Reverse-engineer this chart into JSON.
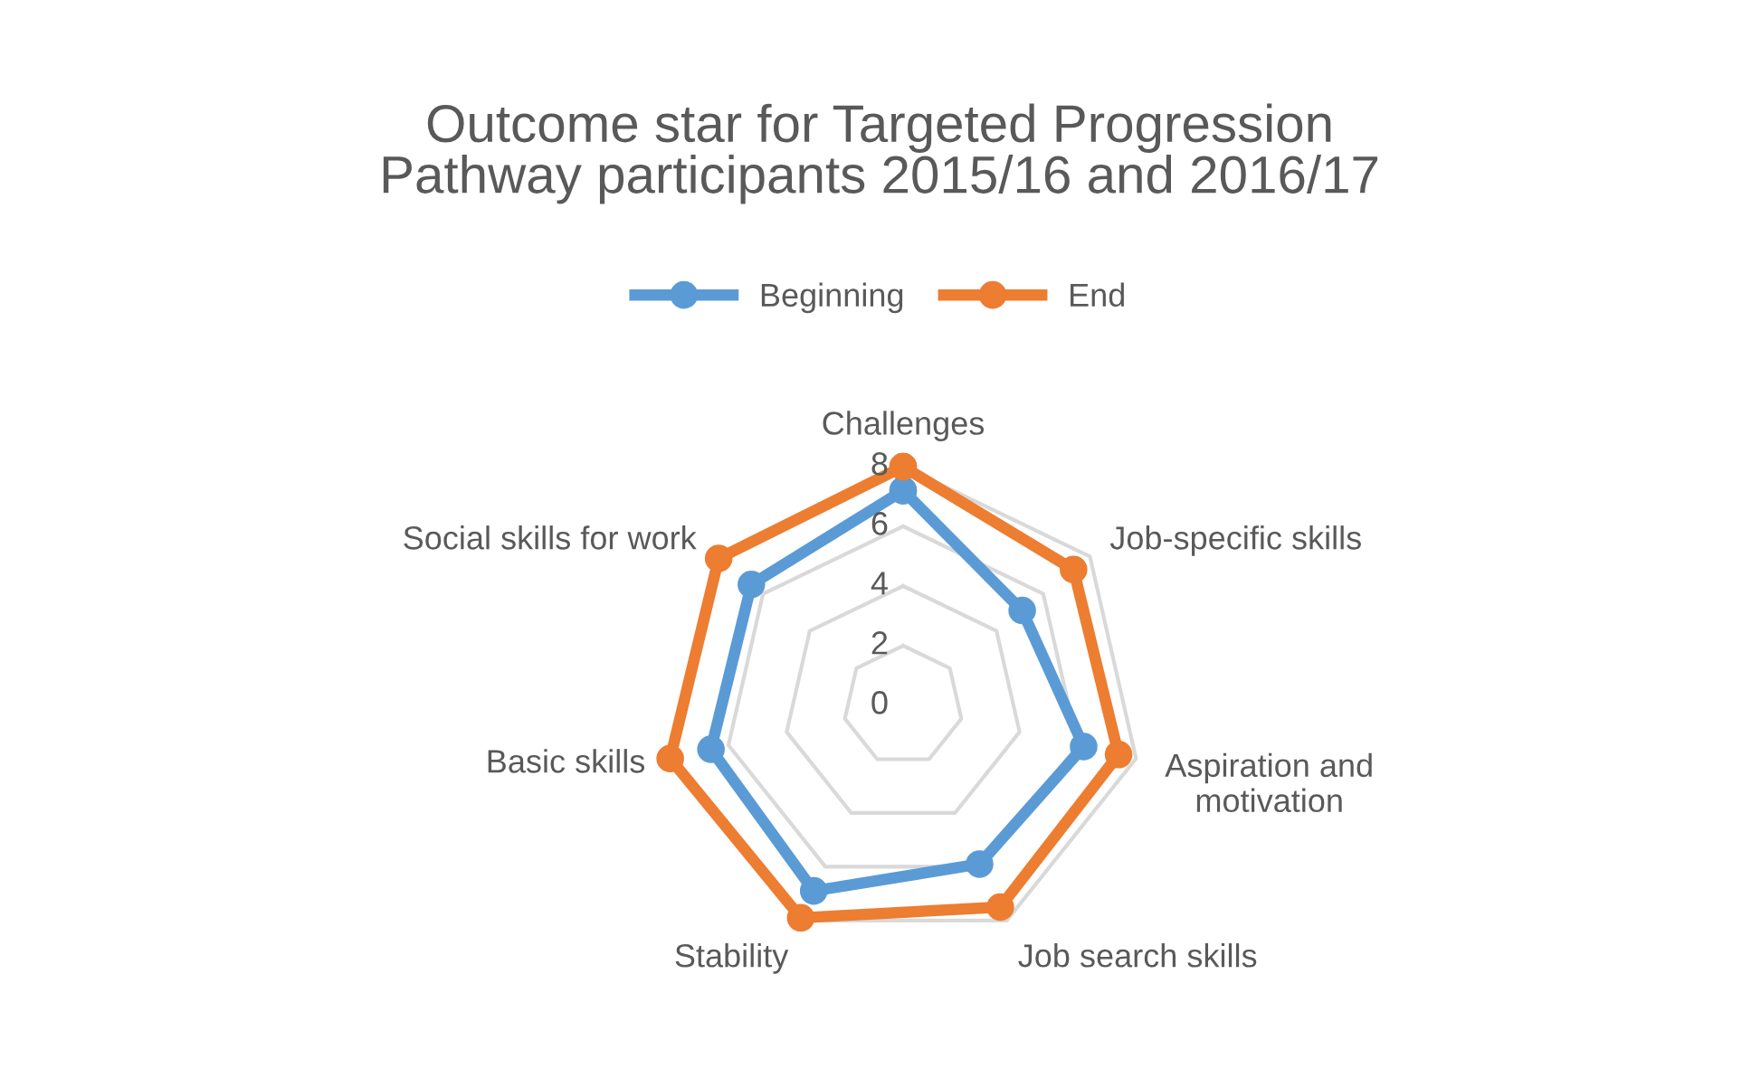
{
  "chart_data": {
    "type": "radar",
    "title": "Outcome star for Targeted Progression\nPathway participants 2015/16 and 2016/17",
    "categories": [
      "Challenges",
      "Job-specific skills",
      "Aspiration and\nmotivation",
      "Job search skills",
      "Stability",
      "Basic skills",
      "Social skills for work"
    ],
    "series": [
      {
        "name": "Beginning",
        "color": "#5b9bd5",
        "values": [
          7.2,
          5.1,
          6.2,
          5.9,
          6.9,
          6.6,
          6.5
        ]
      },
      {
        "name": "End",
        "color": "#ed7d31",
        "values": [
          8.0,
          7.3,
          7.4,
          7.5,
          7.9,
          8.0,
          7.9
        ]
      }
    ],
    "ylim": [
      0,
      8
    ],
    "yticks": [
      0,
      2,
      4,
      6,
      8
    ],
    "grid": true,
    "legend": "top",
    "marker": "circle",
    "line_style": "solid"
  }
}
